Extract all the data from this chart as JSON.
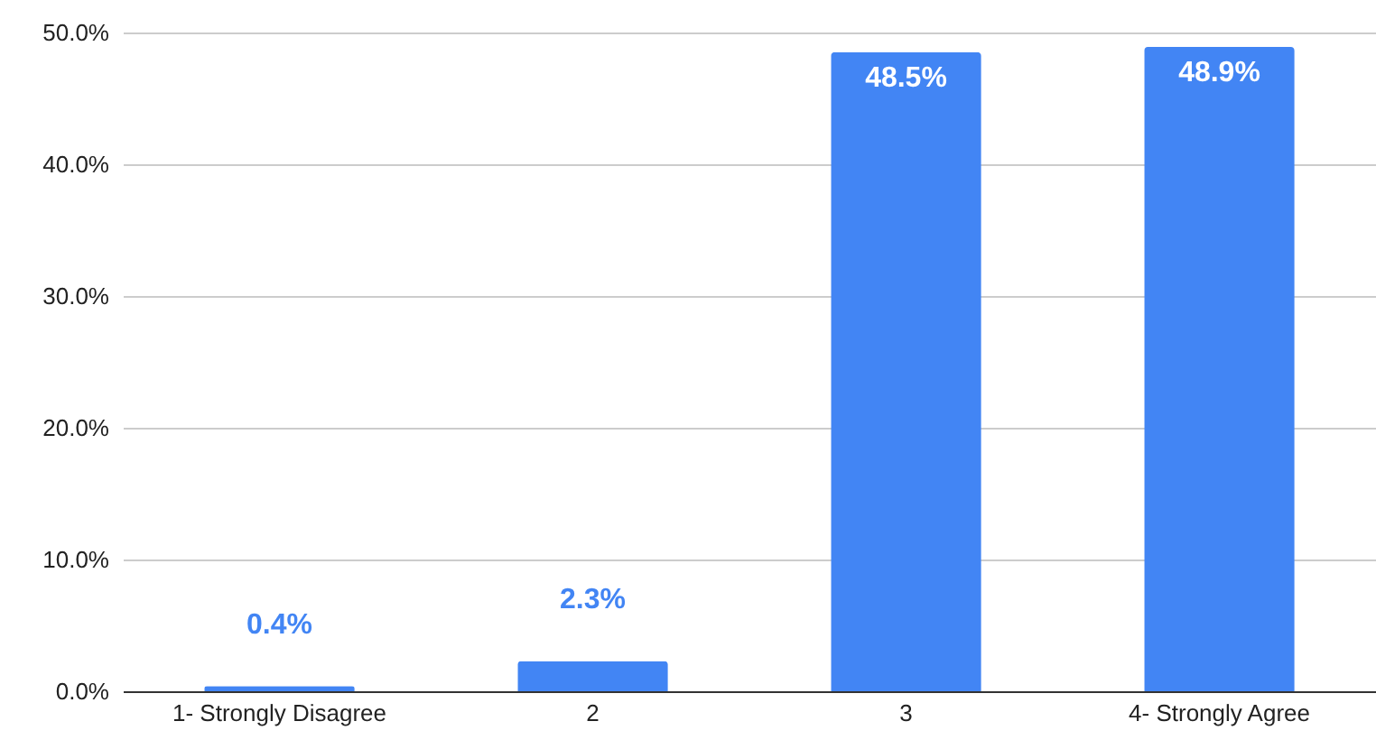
{
  "chart_data": {
    "type": "bar",
    "categories": [
      "1- Strongly Disagree",
      "2",
      "3",
      "4- Strongly Agree"
    ],
    "values": [
      0.4,
      2.3,
      48.5,
      48.9
    ],
    "color": "#4285f4",
    "value_labels": [
      "0.4%",
      "2.3%",
      "48.5%",
      "48.9%"
    ],
    "ylim": [
      0,
      50
    ],
    "yticks": [
      {
        "value": 0,
        "label": "0.0%"
      },
      {
        "value": 10,
        "label": "10.0%"
      },
      {
        "value": 20,
        "label": "20.0%"
      },
      {
        "value": 30,
        "label": "30.0%"
      },
      {
        "value": 40,
        "label": "40.0%"
      },
      {
        "value": 50,
        "label": "50.0%"
      }
    ],
    "grid": "y"
  }
}
